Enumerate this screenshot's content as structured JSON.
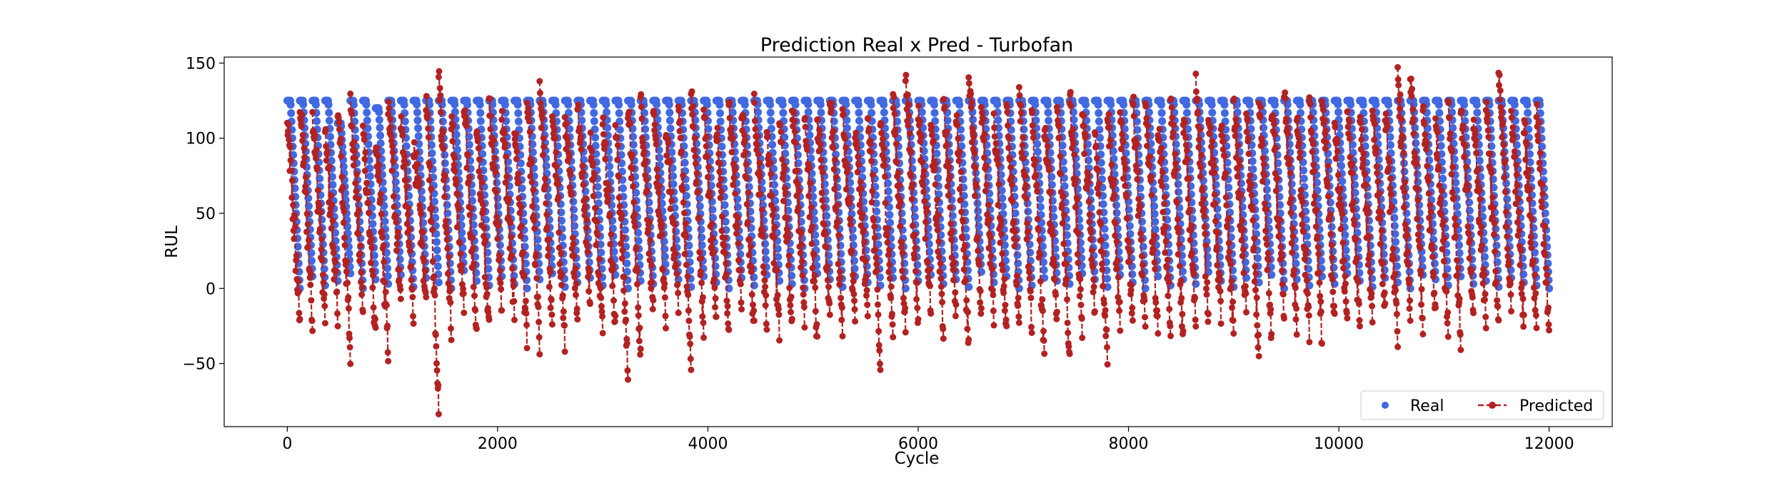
{
  "chart_data": {
    "type": "scatter",
    "title": "Prediction Real x Pred - Turbofan",
    "xlabel": "Cycle",
    "ylabel": "RUL",
    "xlim": [
      -600,
      12600
    ],
    "ylim": [
      -92,
      154
    ],
    "xticks": [
      0,
      2000,
      4000,
      6000,
      8000,
      10000,
      12000
    ],
    "xtick_labels": [
      "0",
      "2000",
      "4000",
      "6000",
      "8000",
      "10000",
      "12000"
    ],
    "yticks": [
      -50,
      0,
      50,
      100,
      150
    ],
    "ytick_labels": [
      "−50",
      "0",
      "50",
      "100",
      "150"
    ],
    "grid": false,
    "legend_position": "lower right",
    "colors": {
      "real": "#4169e1",
      "predicted": "#b22222"
    },
    "real_rul_cap": 125,
    "num_engines": 100,
    "x_max": 12000,
    "series": [
      {
        "name": "Real",
        "style": "markers",
        "segments_start_rul": [
          125,
          125,
          125,
          125,
          110,
          125,
          125,
          120,
          125,
          125,
          125,
          125,
          125,
          125,
          125,
          125,
          125,
          125,
          125,
          125,
          125,
          125,
          125,
          125,
          125,
          125,
          125,
          125,
          125,
          125,
          125,
          125,
          125,
          125,
          125,
          125,
          125,
          125,
          125,
          125,
          125,
          125,
          125,
          125,
          125,
          125,
          125,
          125,
          125,
          125,
          125,
          125,
          125,
          125,
          125,
          125,
          125,
          125,
          125,
          125,
          125,
          125,
          125,
          125,
          125,
          125,
          125,
          125,
          125,
          125,
          125,
          125,
          125,
          125,
          125,
          125,
          125,
          125,
          125,
          125,
          125,
          125,
          125,
          125,
          125,
          125,
          125,
          125,
          125,
          125,
          125,
          125,
          125,
          125,
          125,
          125,
          125,
          125,
          125,
          125
        ],
        "segments_end_rul": [
          0,
          8,
          2,
          5,
          10,
          0,
          6,
          3,
          9,
          1,
          7,
          4,
          0,
          12,
          5,
          2,
          8,
          3,
          0,
          6,
          10,
          1,
          4,
          7,
          2,
          9,
          0,
          5,
          3,
          11,
          6,
          1,
          8,
          4,
          0,
          7,
          2,
          9,
          5,
          3,
          0,
          10,
          6,
          1,
          8,
          4,
          2,
          7,
          0,
          5,
          9,
          3,
          6,
          1,
          11,
          4,
          8,
          0,
          2,
          7,
          5,
          3,
          10,
          6,
          1,
          9,
          4,
          0,
          8,
          2,
          6,
          3,
          11,
          5,
          1,
          7,
          4,
          9,
          0,
          6,
          2,
          8,
          3,
          10,
          5,
          1,
          7,
          4,
          0,
          9,
          6,
          2,
          8,
          3,
          5,
          1,
          7,
          4,
          2,
          0
        ]
      },
      {
        "name": "Predicted",
        "style": "dashed-line-with-markers",
        "segments_start_pred": [
          108,
          122,
          115,
          100,
          118,
          124,
          105,
          98,
          120,
          112,
          95,
          125,
          141,
          110,
          119,
          103,
          126,
          115,
          108,
          121,
          131,
          117,
          112,
          124,
          100,
          116,
          109,
          120,
          125,
          113,
          102,
          119,
          130,
          114,
          107,
          122,
          118,
          126,
          104,
          111,
          123,
          117,
          109,
          128,
          115,
          101,
          120,
          112,
          125,
          139,
          118,
          106,
          121,
          113,
          142,
          119,
          110,
          123,
          127,
          115,
          108,
          121,
          130,
          116,
          103,
          118,
          112,
          125,
          120,
          109,
          124,
          114,
          137,
          117,
          107,
          121,
          113,
          125,
          119,
          130,
          111,
          122,
          127,
          104,
          118,
          112,
          120,
          115,
          142,
          138,
          116,
          109,
          123,
          118,
          112,
          124,
          140,
          117,
          110,
          121
        ],
        "segments_end_pred": [
          -25,
          -23,
          -20,
          -18,
          -45,
          -16,
          -33,
          -43,
          -8,
          -20,
          -5,
          -78,
          -28,
          -16,
          -30,
          -25,
          -12,
          -18,
          -35,
          -39,
          -28,
          -38,
          -19,
          -7,
          -30,
          -24,
          -56,
          -44,
          -15,
          -22,
          -10,
          -55,
          -26,
          -17,
          -33,
          -13,
          -28,
          -24,
          -30,
          -21,
          -19,
          -37,
          -16,
          -27,
          -22,
          -15,
          -56,
          -30,
          -25,
          -23,
          -12,
          -28,
          -16,
          -34,
          -20,
          -18,
          -30,
          -26,
          -24,
          -48,
          -19,
          -50,
          -28,
          -16,
          -45,
          -22,
          -18,
          -29,
          -31,
          -26,
          -34,
          -24,
          -20,
          -18,
          -28,
          -16,
          -45,
          -35,
          -24,
          -26,
          -30,
          -35,
          -22,
          -20,
          -28,
          -18,
          -15,
          -37,
          -22,
          -25,
          -17,
          -25,
          -35,
          -20,
          -22,
          -28,
          -17,
          -24,
          -20,
          -32
        ],
        "noise_amplitude": 18
      }
    ]
  },
  "legend": {
    "items": [
      {
        "label": "Real"
      },
      {
        "label": "Predicted"
      }
    ]
  }
}
